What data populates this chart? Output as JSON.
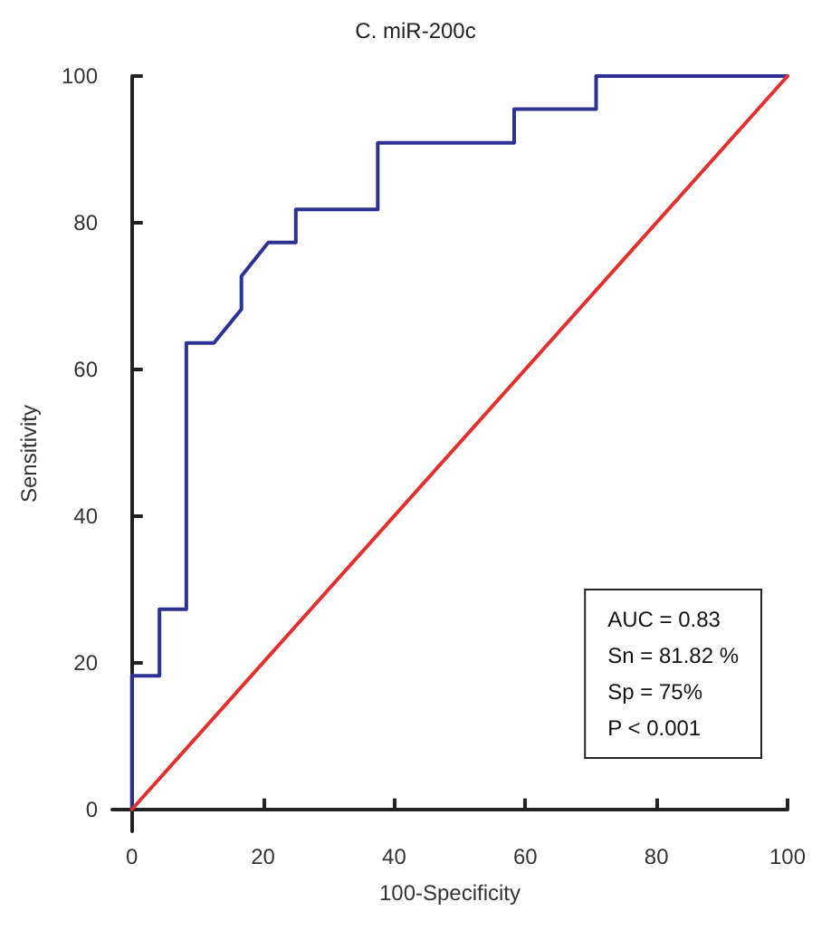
{
  "chart_data": {
    "type": "line",
    "title": "C. miR-200c",
    "xlabel": "100-Specificity",
    "ylabel": "Sensitivity",
    "series": [
      {
        "color": "#2e3192",
        "x": [
          0,
          0,
          4.2,
          4.2,
          8.3,
          8.3,
          12.5,
          16.7,
          16.7,
          20.8,
          25,
          25,
          37.5,
          37.5,
          58.3,
          58.3,
          70.8,
          70.8,
          100
        ],
        "values": [
          0,
          18.2,
          18.2,
          27.3,
          27.3,
          63.6,
          63.6,
          68.2,
          72.7,
          77.3,
          77.3,
          81.8,
          81.8,
          90.9,
          90.9,
          95.5,
          95.5,
          100,
          100
        ]
      },
      {
        "color": "#e03030",
        "x": [
          0,
          100
        ],
        "values": [
          0,
          100
        ]
      }
    ],
    "xlim": [
      -3,
      100
    ],
    "ylim": [
      -3,
      100
    ],
    "xticks": [
      0,
      20,
      40,
      60,
      80,
      100
    ],
    "yticks": [
      0,
      20,
      40,
      60,
      80,
      100
    ],
    "grid": false,
    "marker": "none",
    "line_style": "solid",
    "annotations": [
      "AUC = 0.83",
      "Sn = 81.82 %",
      "Sp = 75%",
      "P < 0.001"
    ]
  }
}
